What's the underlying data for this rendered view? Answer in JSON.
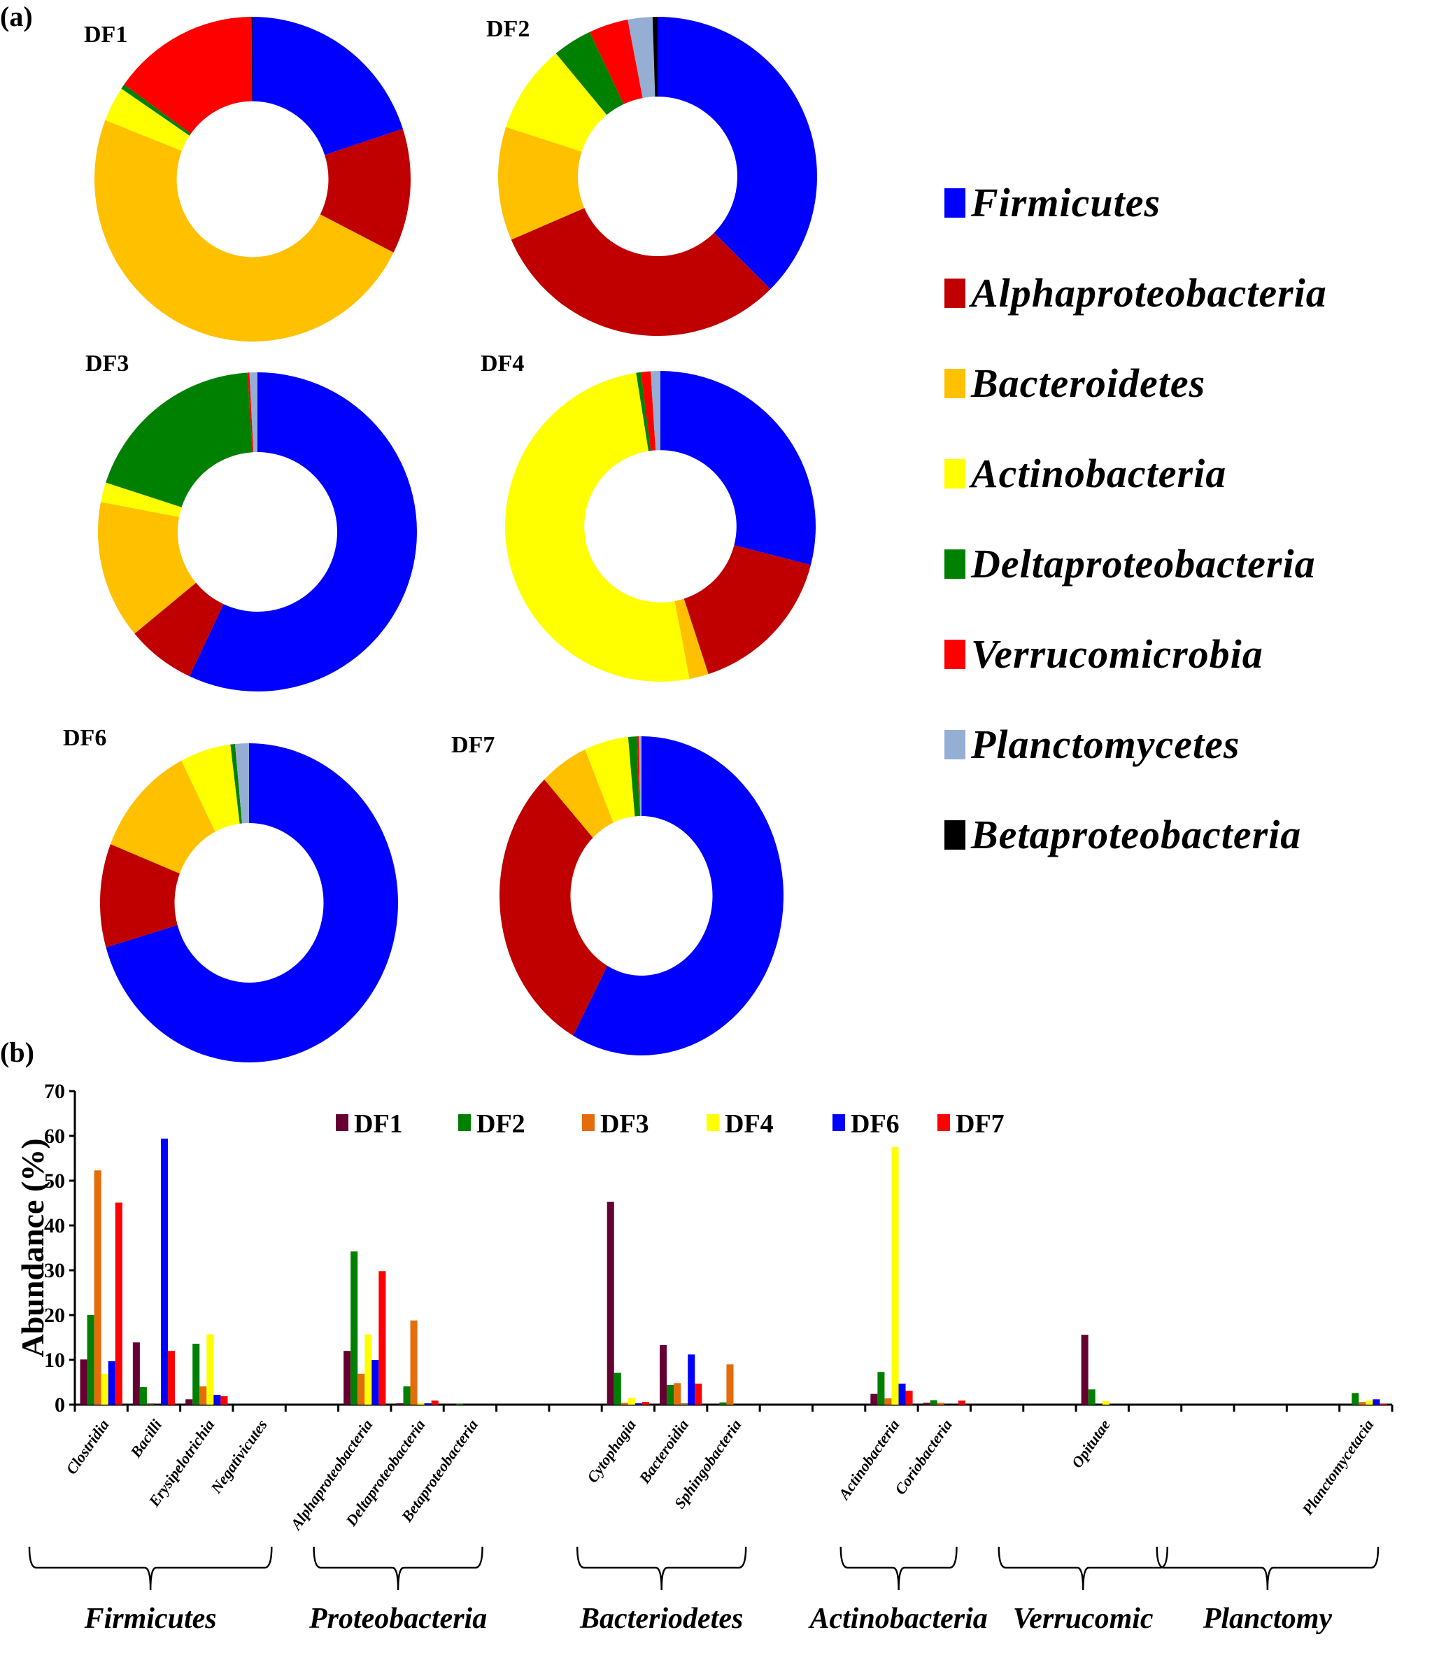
{
  "panel_labels": {
    "a": "(a)",
    "b": "(b)"
  },
  "legend_a": [
    {
      "label": "Firmicutes",
      "color": "#0000ff"
    },
    {
      "label": "Alphaproteobacteria",
      "color": "#c00000"
    },
    {
      "label": "Bacteroidetes",
      "color": "#ffc000"
    },
    {
      "label": "Actinobacteria",
      "color": "#ffff00"
    },
    {
      "label": "Deltaproteobacteria",
      "color": "#008000"
    },
    {
      "label": "Verrucomicrobia",
      "color": "#ff0000"
    },
    {
      "label": "Planctomycetes",
      "color": "#95aed4"
    },
    {
      "label": "Betaproteobacteria",
      "color": "#000000"
    }
  ],
  "chart_data": [
    {
      "type": "pie",
      "variant": "donut",
      "title": "DF1",
      "categories": [
        "Firmicutes",
        "Alphaproteobacteria",
        "Bacteroidetes",
        "Actinobacteria",
        "Deltaproteobacteria",
        "Verrucomicrobia",
        "Planctomycetes",
        "Betaproteobacteria"
      ],
      "values": [
        20.0,
        12.5,
        48.5,
        3.5,
        0.5,
        15.0,
        0.0,
        0.1
      ]
    },
    {
      "type": "pie",
      "variant": "donut",
      "title": "DF2",
      "categories": [
        "Firmicutes",
        "Alphaproteobacteria",
        "Bacteroidetes",
        "Actinobacteria",
        "Deltaproteobacteria",
        "Verrucomicrobia",
        "Planctomycetes",
        "Betaproteobacteria"
      ],
      "values": [
        37.5,
        31.0,
        11.5,
        9.0,
        4.0,
        4.0,
        2.5,
        0.5
      ]
    },
    {
      "type": "pie",
      "variant": "donut",
      "title": "DF3",
      "categories": [
        "Firmicutes",
        "Alphaproteobacteria",
        "Bacteroidetes",
        "Actinobacteria",
        "Deltaproteobacteria",
        "Verrucomicrobia",
        "Planctomycetes",
        "Betaproteobacteria"
      ],
      "values": [
        57.0,
        7.0,
        14.0,
        2.0,
        19.0,
        0.2,
        0.8,
        0.0
      ]
    },
    {
      "type": "pie",
      "variant": "donut",
      "title": "DF4",
      "categories": [
        "Firmicutes",
        "Alphaproteobacteria",
        "Bacteroidetes",
        "Actinobacteria",
        "Deltaproteobacteria",
        "Verrucomicrobia",
        "Planctomycetes",
        "Betaproteobacteria"
      ],
      "values": [
        29.0,
        16.0,
        2.0,
        50.5,
        0.5,
        1.0,
        1.0,
        0.0
      ]
    },
    {
      "type": "pie",
      "variant": "donut",
      "title": "DF6",
      "categories": [
        "Firmicutes",
        "Alphaproteobacteria",
        "Bacteroidetes",
        "Actinobacteria",
        "Deltaproteobacteria",
        "Verrucomicrobia",
        "Planctomycetes",
        "Betaproteobacteria"
      ],
      "values": [
        70.5,
        10.5,
        11.5,
        5.5,
        0.5,
        0.0,
        1.5,
        0.0
      ]
    },
    {
      "type": "pie",
      "variant": "donut",
      "title": "DF7",
      "categories": [
        "Firmicutes",
        "Alphaproteobacteria",
        "Bacteroidetes",
        "Actinobacteria",
        "Deltaproteobacteria",
        "Verrucomicrobia",
        "Planctomycetes",
        "Betaproteobacteria"
      ],
      "values": [
        58.0,
        30.0,
        5.5,
        5.0,
        1.0,
        0.2,
        0.3,
        0.0
      ]
    },
    {
      "type": "bar",
      "title": "",
      "xlabel": "",
      "ylabel": "Abundance (%)",
      "ylim": [
        0,
        70
      ],
      "yticks": [
        0,
        10,
        20,
        30,
        40,
        50,
        60,
        70
      ],
      "grid": false,
      "legend_position": "top",
      "categories": [
        "Clostridia",
        "Bacilli",
        "Erysipelotrichia",
        "Negativicutes",
        "",
        "Alphaproteobacteria",
        "Deltaproteobacteria",
        "Betaproteobacteria",
        "",
        "",
        "Cytophagia",
        "Bacteroidia",
        "Sphingobacteria",
        "",
        "",
        "Actinobacteria",
        "Coriobacteria",
        "",
        "",
        "Opitutae",
        "",
        "",
        "",
        "",
        "Planctomycetacia"
      ],
      "series": [
        {
          "name": "DF1",
          "color": "#660033",
          "values": [
            10.1,
            13.9,
            1.2,
            0,
            0,
            12.0,
            0.3,
            0,
            0,
            0,
            45.3,
            13.3,
            0,
            0,
            0,
            2.4,
            0.4,
            0,
            0,
            15.6,
            0,
            0,
            0,
            0,
            0
          ]
        },
        {
          "name": "DF2",
          "color": "#008000",
          "values": [
            20.0,
            3.9,
            13.6,
            0,
            0,
            34.2,
            4.1,
            0.2,
            0,
            0,
            7.1,
            4.4,
            0.5,
            0,
            0,
            7.3,
            1.0,
            0,
            0,
            3.4,
            0,
            0,
            0,
            0,
            2.6
          ]
        },
        {
          "name": "DF3",
          "color": "#e46c0a",
          "values": [
            52.3,
            0.1,
            4.1,
            0,
            0,
            6.9,
            18.8,
            0,
            0,
            0,
            0.4,
            4.8,
            9.0,
            0,
            0,
            1.4,
            0.4,
            0,
            0,
            0,
            0,
            0,
            0,
            0,
            0.6
          ]
        },
        {
          "name": "DF4",
          "color": "#ffff00",
          "values": [
            6.9,
            0,
            15.7,
            0,
            0,
            15.7,
            0.4,
            0,
            0,
            0,
            1.5,
            0.1,
            0,
            0,
            0,
            57.5,
            0,
            0,
            0,
            0.8,
            0,
            0,
            0,
            0,
            0.9
          ]
        },
        {
          "name": "DF6",
          "color": "#0000ff",
          "values": [
            9.7,
            59.4,
            2.2,
            0,
            0,
            10.0,
            0.3,
            0,
            0,
            0,
            0.3,
            11.2,
            0,
            0,
            0,
            4.7,
            0,
            0,
            0,
            0,
            0,
            0,
            0,
            0,
            1.2
          ]
        },
        {
          "name": "DF7",
          "color": "#ff0000",
          "values": [
            45.1,
            12.0,
            1.9,
            0,
            0,
            29.8,
            0.9,
            0,
            0,
            0,
            0.6,
            4.7,
            0,
            0,
            0,
            3.1,
            0.9,
            0,
            0,
            0,
            0,
            0,
            0,
            0,
            0.2
          ]
        }
      ],
      "groups": [
        {
          "label": "Firmicutes",
          "from": 0,
          "to": 3
        },
        {
          "label": "Proteobacteria",
          "from": 5,
          "to": 7
        },
        {
          "label": "Bacteriodetes",
          "from": 10,
          "to": 12
        },
        {
          "label": "Actinobacteria",
          "from": 15,
          "to": 16
        },
        {
          "label": "Verrucomic",
          "from": 18,
          "to": 20
        },
        {
          "label": "Planctomy",
          "from": 21,
          "to": 24
        }
      ]
    }
  ]
}
